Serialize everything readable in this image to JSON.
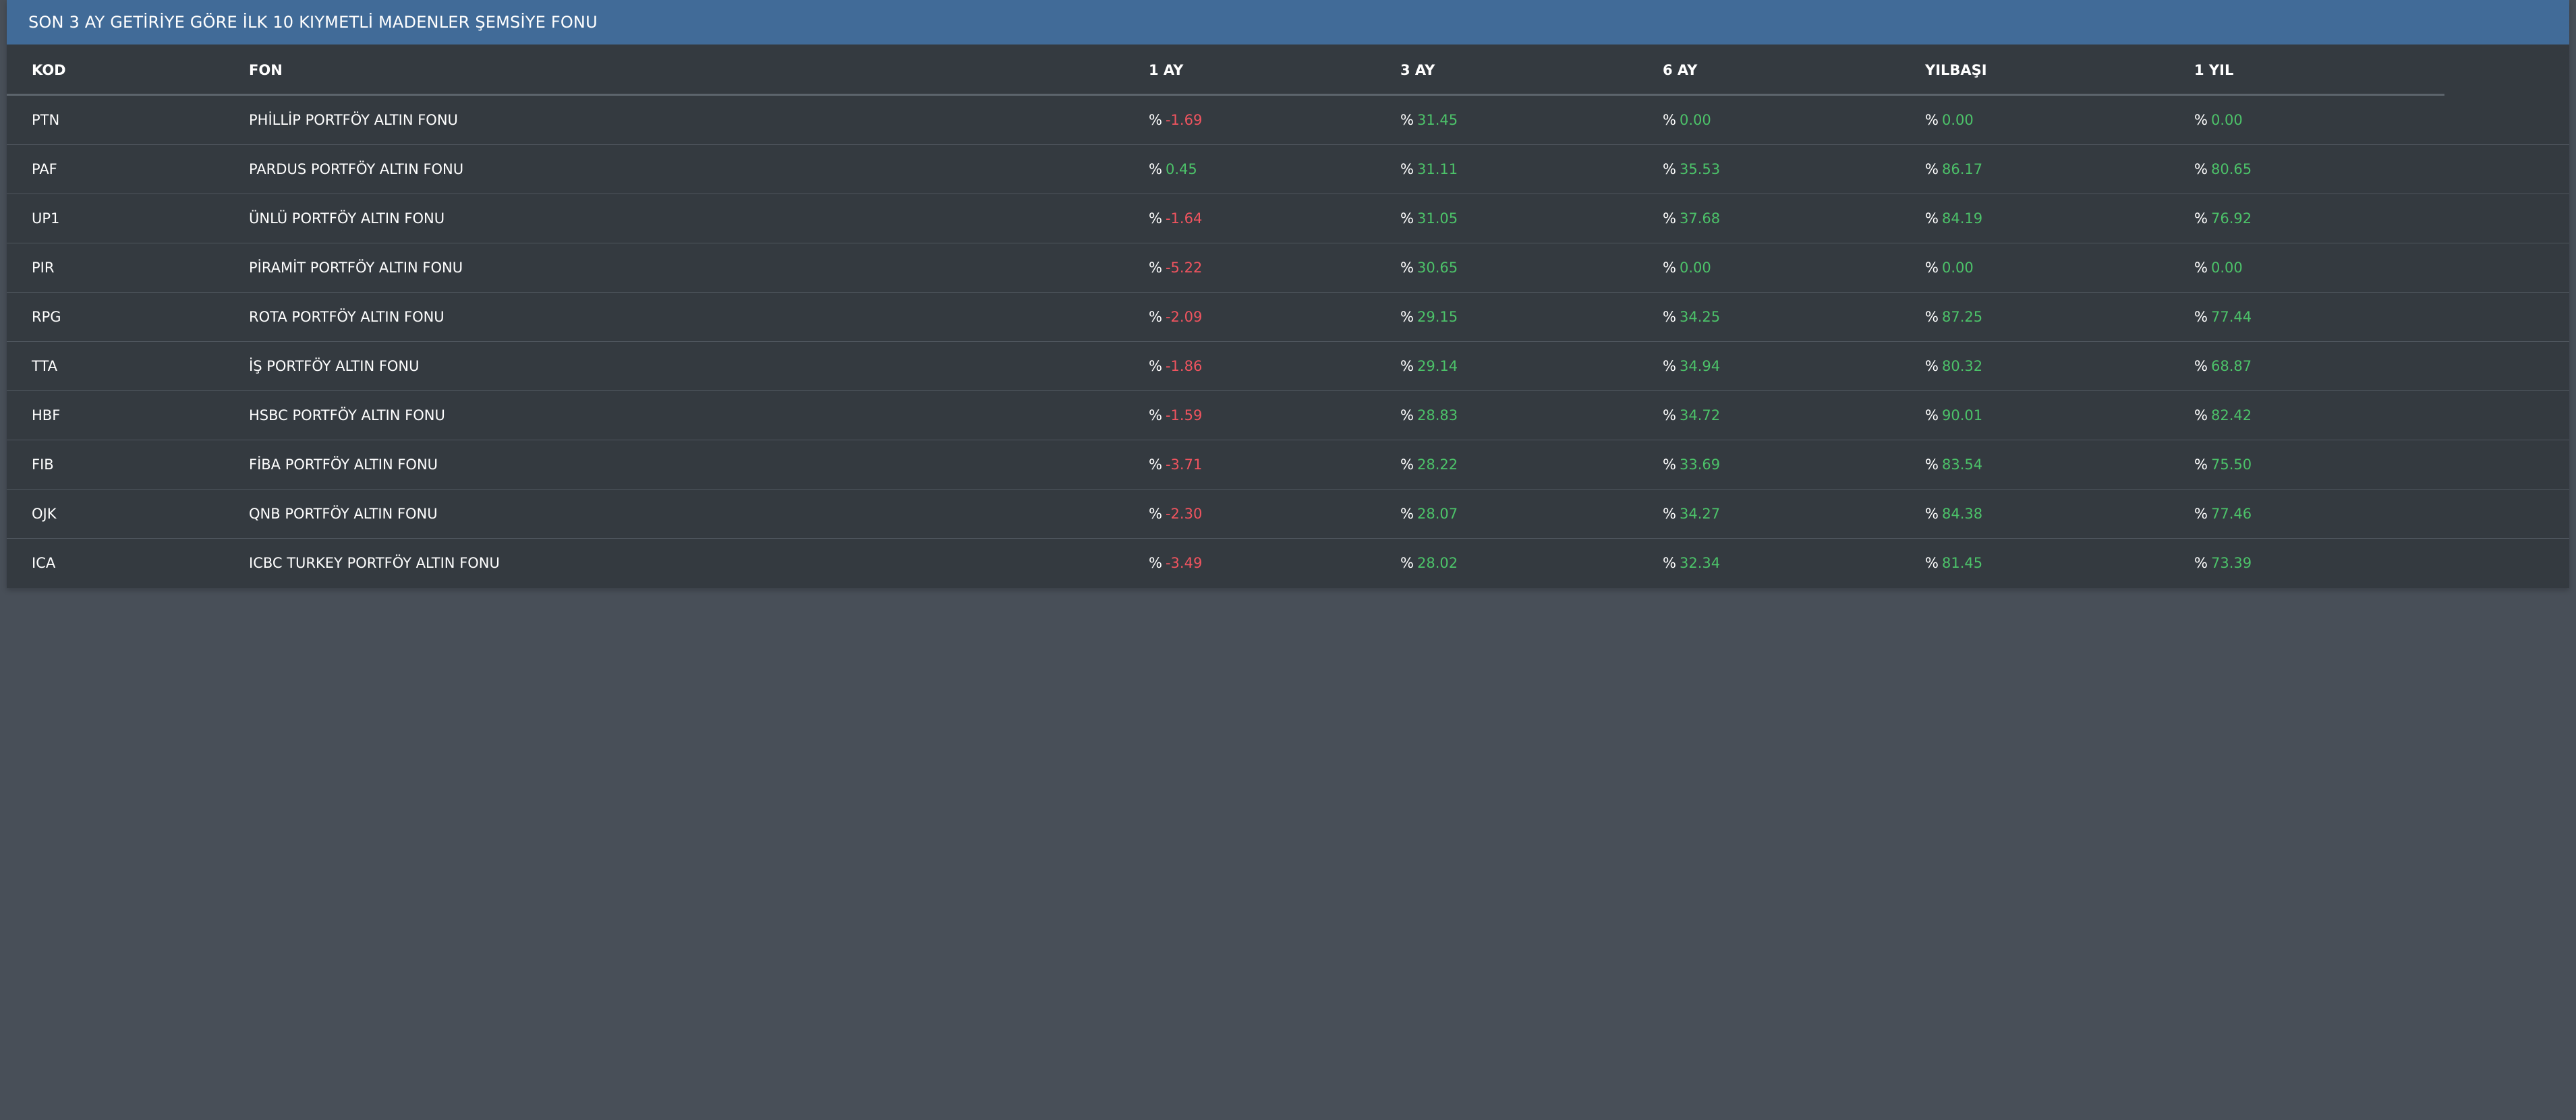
{
  "header": {
    "title": "SON 3 AY GETİRİYE GÖRE İLK 10 KIYMETLİ MADENLER ŞEMSİYE FONU"
  },
  "columns": {
    "kod": "KOD",
    "fon": "FON",
    "ay1": "1 AY",
    "ay3": "3 AY",
    "ay6": "6 AY",
    "ytd": "YILBAŞI",
    "yil1": "1 YIL"
  },
  "percent_symbol": "%",
  "colors": {
    "positive": "#4cc269",
    "negative": "#f0545f",
    "header_bg": "#416b98"
  },
  "rows": [
    {
      "kod": "PTN",
      "fon": "PHİLLİP PORTFÖY ALTIN FONU",
      "ay1": "-1.69",
      "ay3": "31.45",
      "ay6": "0.00",
      "ytd": "0.00",
      "yil1": "0.00"
    },
    {
      "kod": "PAF",
      "fon": "PARDUS PORTFÖY ALTIN FONU",
      "ay1": "0.45",
      "ay3": "31.11",
      "ay6": "35.53",
      "ytd": "86.17",
      "yil1": "80.65"
    },
    {
      "kod": "UP1",
      "fon": "ÜNLÜ PORTFÖY ALTIN FONU",
      "ay1": "-1.64",
      "ay3": "31.05",
      "ay6": "37.68",
      "ytd": "84.19",
      "yil1": "76.92"
    },
    {
      "kod": "PIR",
      "fon": "PİRAMİT PORTFÖY ALTIN FONU",
      "ay1": "-5.22",
      "ay3": "30.65",
      "ay6": "0.00",
      "ytd": "0.00",
      "yil1": "0.00"
    },
    {
      "kod": "RPG",
      "fon": "ROTA PORTFÖY ALTIN FONU",
      "ay1": "-2.09",
      "ay3": "29.15",
      "ay6": "34.25",
      "ytd": "87.25",
      "yil1": "77.44"
    },
    {
      "kod": "TTA",
      "fon": "İŞ PORTFÖY ALTIN FONU",
      "ay1": "-1.86",
      "ay3": "29.14",
      "ay6": "34.94",
      "ytd": "80.32",
      "yil1": "68.87"
    },
    {
      "kod": "HBF",
      "fon": "HSBC PORTFÖY ALTIN FONU",
      "ay1": "-1.59",
      "ay3": "28.83",
      "ay6": "34.72",
      "ytd": "90.01",
      "yil1": "82.42"
    },
    {
      "kod": "FIB",
      "fon": "FİBA PORTFÖY ALTIN FONU",
      "ay1": "-3.71",
      "ay3": "28.22",
      "ay6": "33.69",
      "ytd": "83.54",
      "yil1": "75.50"
    },
    {
      "kod": "OJK",
      "fon": "QNB PORTFÖY ALTIN FONU",
      "ay1": "-2.30",
      "ay3": "28.07",
      "ay6": "34.27",
      "ytd": "84.38",
      "yil1": "77.46"
    },
    {
      "kod": "ICA",
      "fon": "ICBC TURKEY PORTFÖY ALTIN FONU",
      "ay1": "-3.49",
      "ay3": "28.02",
      "ay6": "32.34",
      "ytd": "81.45",
      "yil1": "73.39"
    }
  ]
}
